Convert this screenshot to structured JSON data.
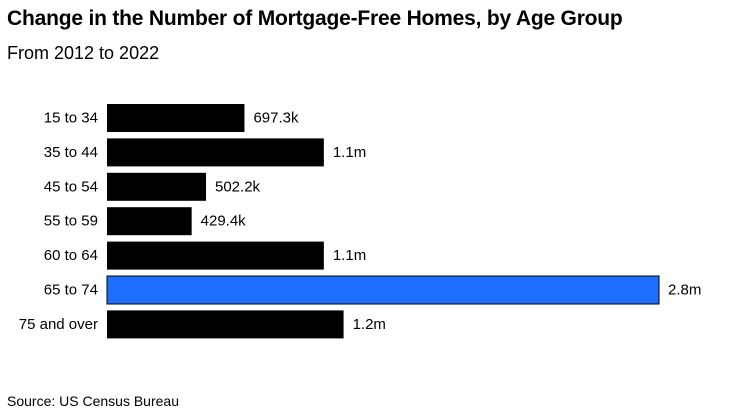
{
  "chart_data": {
    "type": "bar",
    "orientation": "horizontal",
    "title": "Change in the Number of Mortgage-Free Homes, by Age Group",
    "subtitle": "From 2012 to 2022",
    "categories": [
      "15 to 34",
      "35 to 44",
      "45 to 54",
      "55 to 59",
      "60 to 64",
      "65 to 74",
      "75 and over"
    ],
    "values": [
      697300,
      1100000,
      502200,
      429400,
      1100000,
      2800000,
      1200000
    ],
    "data_labels": [
      "697.3k",
      "1.1m",
      "502.2k",
      "429.4k",
      "1.1m",
      "2.8m",
      "1.2m"
    ],
    "highlight_index": 5,
    "colors": {
      "bar": "#000000",
      "highlight": "#1f6fff",
      "highlight_border": "#000000"
    },
    "xlim": [
      0,
      2800000
    ],
    "grid": false,
    "axis_lines": false,
    "source": "Source: US Census Bureau"
  }
}
